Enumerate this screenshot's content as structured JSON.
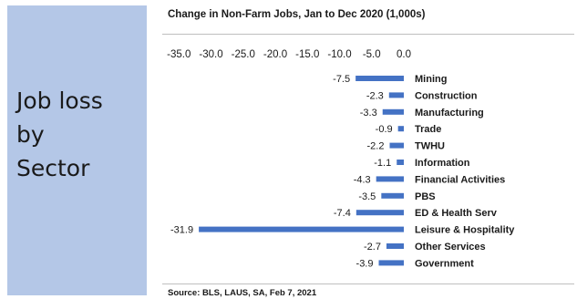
{
  "slide": {
    "side_title": "Job loss\nby\nSector"
  },
  "chart_data": {
    "type": "bar",
    "orientation": "horizontal",
    "title": "Change in Non-Farm Jobs, Jan to Dec 2020 (1,000s)",
    "source": "Source: BLS, LAUS, SA, Feb 7, 2021",
    "categories": [
      "Mining",
      "Construction",
      "Manufacturing",
      "Trade",
      "TWHU",
      "Information",
      "Financial Activities",
      "PBS",
      "ED & Health Serv",
      "Leisure & Hospitality",
      "Other Services",
      "Government"
    ],
    "values": [
      -7.5,
      -2.3,
      -3.3,
      -0.9,
      -2.2,
      -1.1,
      -4.3,
      -3.5,
      -7.4,
      -31.9,
      -2.7,
      -3.9
    ],
    "value_labels": [
      "-7.5",
      "-2.3",
      "-3.3",
      "-0.9",
      "-2.2",
      "-1.1",
      "-4.3",
      "-3.5",
      "-7.4",
      "-31.9",
      "-2.7",
      "-3.9"
    ],
    "xlim": [
      -35,
      0
    ],
    "x_ticks": [
      "-35.0",
      "-30.0",
      "-25.0",
      "-20.0",
      "-15.0",
      "-10.0",
      "-5.0",
      "0.0"
    ],
    "axis_position": "top",
    "grid": false,
    "bar_color": "#4472c4"
  }
}
